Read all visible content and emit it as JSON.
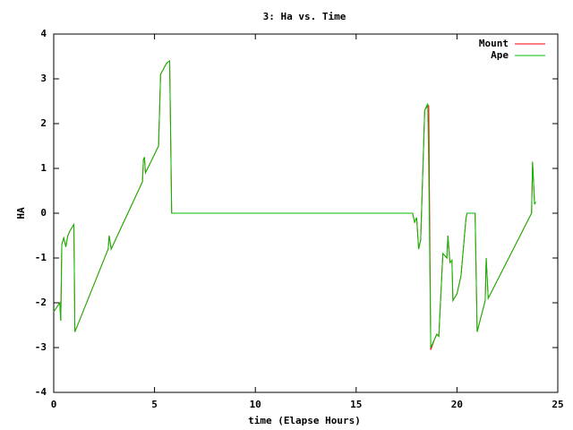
{
  "chart_data": {
    "type": "line",
    "title": "3: Ha vs. Time",
    "x_label": "time (Elapse Hours)",
    "y_label": "HA",
    "xlim": [
      0,
      25
    ],
    "xticks": [
      0,
      5,
      10,
      15,
      20,
      25
    ],
    "ylim": [
      -4,
      4
    ],
    "yticks": [
      -4,
      -3,
      -2,
      -1,
      0,
      1,
      2,
      3,
      4
    ],
    "legend": "top-right",
    "x": [
      0,
      0.3,
      0.35,
      0.4,
      0.5,
      0.6,
      0.7,
      0.8,
      1.0,
      1.05,
      2.7,
      2.75,
      2.85,
      4.4,
      4.45,
      4.5,
      4.55,
      5.2,
      5.3,
      5.6,
      5.75,
      5.85,
      17.8,
      17.9,
      18.0,
      18.1,
      18.2,
      18.4,
      18.55,
      18.6,
      18.7,
      18.9,
      19.0,
      19.1,
      19.3,
      19.5,
      19.55,
      19.65,
      19.75,
      19.8,
      20.0,
      20.2,
      20.45,
      20.5,
      20.9,
      21.0,
      21.4,
      21.45,
      21.55,
      23.7,
      23.75,
      23.85,
      23.9
    ],
    "series": [
      {
        "name": "Mount",
        "color": "#ff0000",
        "values": [
          -2.2,
          -2.0,
          -2.4,
          -0.7,
          -0.55,
          -0.75,
          -0.5,
          -0.4,
          -0.25,
          -2.65,
          -0.8,
          -0.5,
          -0.8,
          0.7,
          1.2,
          1.25,
          0.9,
          1.5,
          3.1,
          3.35,
          3.4,
          0,
          0,
          -0.2,
          -0.1,
          -0.8,
          -0.6,
          2.3,
          2.4,
          2.4,
          -3.05,
          -2.8,
          -2.7,
          -2.75,
          -0.9,
          -1.0,
          -0.5,
          -1.1,
          -1.05,
          -1.95,
          -1.8,
          -1.4,
          -0.1,
          0,
          0,
          -2.65,
          -1.95,
          -1.0,
          -1.9,
          0,
          1.15,
          0.2,
          0.25
        ]
      },
      {
        "name": "Ape",
        "color": "#00c000",
        "values": [
          -2.2,
          -2.0,
          -2.4,
          -0.7,
          -0.55,
          -0.75,
          -0.5,
          -0.4,
          -0.25,
          -2.65,
          -0.8,
          -0.5,
          -0.8,
          0.7,
          1.2,
          1.25,
          0.9,
          1.5,
          3.1,
          3.35,
          3.4,
          0,
          0,
          -0.2,
          -0.1,
          -0.8,
          -0.6,
          2.3,
          2.45,
          1.0,
          -3.0,
          -2.8,
          -2.7,
          -2.75,
          -0.9,
          -1.0,
          -0.5,
          -1.1,
          -1.05,
          -1.95,
          -1.8,
          -1.4,
          -0.1,
          0,
          0,
          -2.65,
          -1.95,
          -1.0,
          -1.9,
          0,
          1.15,
          0.2,
          0.25
        ]
      }
    ]
  }
}
